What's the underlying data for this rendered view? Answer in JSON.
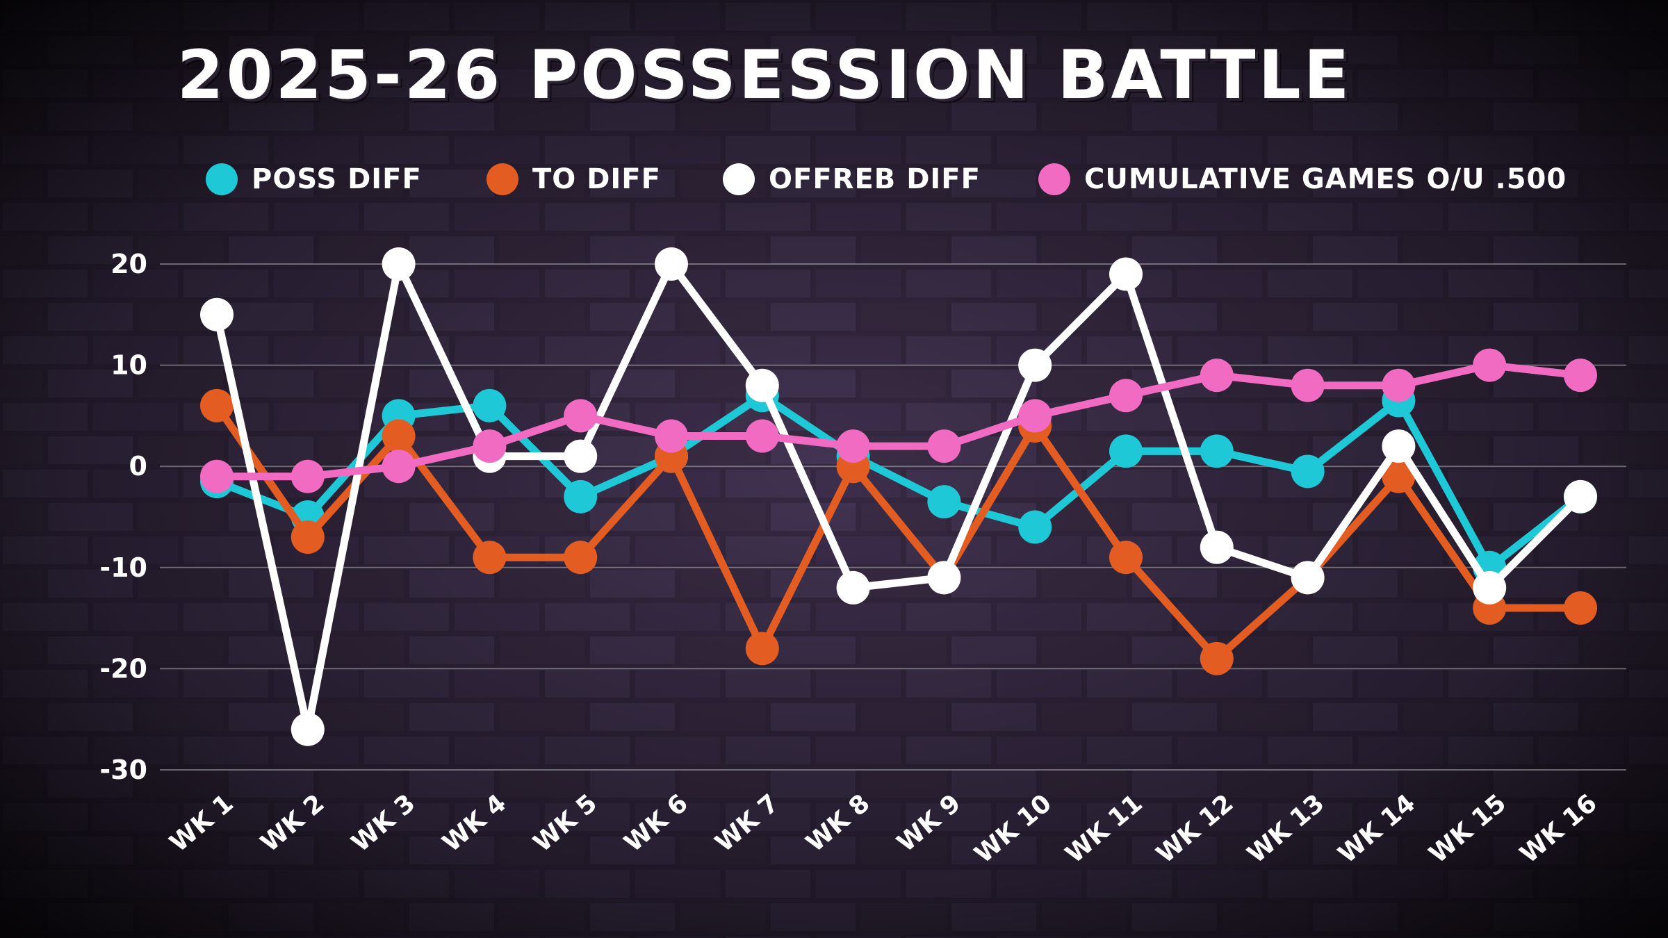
{
  "chart_data": {
    "type": "line",
    "title": "2025-26 POSSESSION BATTLE",
    "categories": [
      "WK 1",
      "WK 2",
      "WK 3",
      "WK 4",
      "WK 5",
      "WK 6",
      "WK 7",
      "WK 8",
      "WK 9",
      "WK 10",
      "WK 11",
      "WK 12",
      "WK 13",
      "WK 14",
      "WK 15",
      "WK 16"
    ],
    "ylim": [
      -30,
      20
    ],
    "yticks": [
      "20",
      "10",
      "0",
      "-10",
      "-20",
      "-30"
    ],
    "grid": true,
    "legend_position": "top",
    "series": [
      {
        "name": "POSS DIFF",
        "color": "#1fc8d6",
        "values": [
          -1.5,
          -5,
          5,
          6,
          -3,
          1,
          7,
          1,
          -3.5,
          -6,
          1.5,
          1.5,
          -0.5,
          6.5,
          -10,
          -3
        ]
      },
      {
        "name": "TO DIFF",
        "color": "#e35d22",
        "values": [
          6,
          -7,
          3,
          -9,
          -9,
          1,
          -18,
          0,
          -11,
          4,
          -9,
          -19,
          -11,
          -1,
          -14,
          -14
        ]
      },
      {
        "name": "OFFREB DIFF",
        "color": "#ffffff",
        "values": [
          15,
          -26,
          20,
          1,
          1,
          20,
          8,
          -12,
          -11,
          10,
          19,
          -8,
          -11,
          2,
          -12,
          -3
        ]
      },
      {
        "name": "CUMULATIVE GAMES O/U .500",
        "color": "#f26bc2",
        "values": [
          -1,
          -1,
          0,
          2,
          5,
          3,
          3,
          2,
          2,
          5,
          7,
          9,
          8,
          8,
          10,
          9
        ]
      }
    ]
  }
}
